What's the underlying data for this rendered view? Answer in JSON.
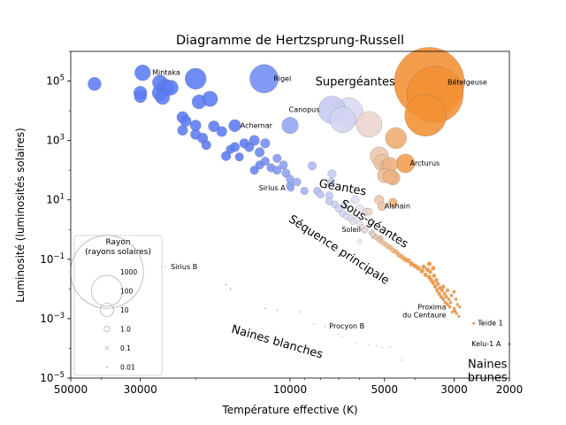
{
  "chart_data": {
    "type": "scatter",
    "title": "Diagramme de Hertzsprung-Russell",
    "xlabel": "Température effective (K)",
    "ylabel": "Luminosité (luminosités solaires)",
    "x_scale": "log",
    "x_reversed": true,
    "y_scale": "log",
    "xlim": [
      50000,
      2000
    ],
    "ylim": [
      1e-05,
      1000000
    ],
    "x_ticks": [
      {
        "value": 50000,
        "label": "50000"
      },
      {
        "value": 30000,
        "label": "30000"
      },
      {
        "value": 10000,
        "label": "10000"
      },
      {
        "value": 5000,
        "label": "5000"
      },
      {
        "value": 3000,
        "label": "3000"
      },
      {
        "value": 2000,
        "label": "2000"
      }
    ],
    "y_ticks": [
      {
        "value": 1e-05,
        "base": "10",
        "exp": "−5"
      },
      {
        "value": 0.001,
        "base": "10",
        "exp": "−3"
      },
      {
        "value": 0.1,
        "base": "10",
        "exp": "−1"
      },
      {
        "value": 10,
        "base": "10",
        "exp": "1"
      },
      {
        "value": 1000,
        "base": "10",
        "exp": "3"
      },
      {
        "value": 100000,
        "base": "10",
        "exp": "5"
      }
    ],
    "grid": false,
    "color_scale": {
      "hot": "#5b7cf5",
      "neutral": "#e8e4f0",
      "cool": "#f39033"
    },
    "regions": [
      {
        "label": "Supergéantes",
        "x": 6200,
        "y": 90000,
        "rotate": 0
      },
      {
        "label": "Géantes",
        "x": 6800,
        "y": 25,
        "rotate": 10
      },
      {
        "label": "Sous-géantes",
        "x": 5400,
        "y": 1.5,
        "rotate": 33
      },
      {
        "label": "Séquence principale",
        "x": 7000,
        "y": 0.2,
        "rotate": 33
      },
      {
        "label": "Naines blanches",
        "x": 11000,
        "y": 0.00016,
        "rotate": 16
      },
      {
        "label": "Naines",
        "x": 2350,
        "y": 2.8e-05,
        "rotate": 0
      },
      {
        "label": "brunes",
        "x": 2350,
        "y": 1e-05,
        "rotate": 0
      }
    ],
    "named_stars": [
      {
        "name": "Mintaka",
        "temp": 29500,
        "lum": 190000,
        "radius": 16
      },
      {
        "name": "Rigel",
        "temp": 12100,
        "lum": 120000,
        "radius": 79
      },
      {
        "name": "Bételgeuse",
        "temp": 3600,
        "lum": 90000,
        "radius": 900
      },
      {
        "name": "Canopus",
        "temp": 7350,
        "lum": 10700,
        "radius": 71
      },
      {
        "name": "Achernar",
        "temp": 15000,
        "lum": 3150,
        "radius": 8
      },
      {
        "name": "Arcturus",
        "temp": 4290,
        "lum": 170,
        "radius": 25
      },
      {
        "name": "Sirius A",
        "temp": 9940,
        "lum": 25,
        "radius": 1.7
      },
      {
        "name": "Alshain",
        "temp": 5100,
        "lum": 6,
        "radius": 3
      },
      {
        "name": "Soleil",
        "temp": 5772,
        "lum": 1,
        "radius": 1
      },
      {
        "name": "Sirius B",
        "temp": 25000,
        "lum": 0.056,
        "radius": 0.008
      },
      {
        "name": "Proxima du Centaure",
        "temp": 3040,
        "lum": 0.0017,
        "radius": 0.15
      },
      {
        "name": "Teide 1",
        "temp": 2600,
        "lum": 0.0007,
        "radius": 0.1
      },
      {
        "name": "Procyon B",
        "temp": 7740,
        "lum": 0.00055,
        "radius": 0.012
      },
      {
        "name": "Kelu-1 A",
        "temp": 2000,
        "lum": 0.00014,
        "radius": 0.1
      }
    ],
    "labels": [
      {
        "text": "Mintaka",
        "x": 27500,
        "y": 190000,
        "anchor": "start"
      },
      {
        "text": "Rigel",
        "x": 11300,
        "y": 120000,
        "anchor": "start"
      },
      {
        "text": "Bételgeuse",
        "x": 3150,
        "y": 90000,
        "anchor": "start"
      },
      {
        "text": "Canopus",
        "x": 8050,
        "y": 10700,
        "anchor": "end"
      },
      {
        "text": "Achernar",
        "x": 14400,
        "y": 3150,
        "anchor": "start"
      },
      {
        "text": "Arcturus",
        "x": 4150,
        "y": 170,
        "anchor": "start"
      },
      {
        "text": "Sirius A",
        "x": 10350,
        "y": 25,
        "anchor": "end"
      },
      {
        "text": "Alshain",
        "x": 5000,
        "y": 6,
        "anchor": "start"
      },
      {
        "text": "Soleil",
        "x": 5950,
        "y": 1,
        "anchor": "end"
      },
      {
        "text": "Sirius B",
        "x": 24000,
        "y": 0.056,
        "anchor": "start"
      },
      {
        "text": "Proxima",
        "x": 3180,
        "y": 0.0024,
        "anchor": "end"
      },
      {
        "text": "du Centaure",
        "x": 3180,
        "y": 0.0013,
        "anchor": "end"
      },
      {
        "text": "Teide 1",
        "x": 2520,
        "y": 0.0007,
        "anchor": "start"
      },
      {
        "text": "Procyon B",
        "x": 7500,
        "y": 0.00055,
        "anchor": "start"
      },
      {
        "text": "Kelu-1 A",
        "x": 2130,
        "y": 0.00014,
        "anchor": "end"
      }
    ],
    "stars": [
      {
        "temp": 42000,
        "lum": 80000,
        "radius": 10
      },
      {
        "temp": 30000,
        "lum": 40000,
        "radius": 10
      },
      {
        "temp": 30000,
        "lum": 30000,
        "radius": 8
      },
      {
        "temp": 26000,
        "lum": 90000,
        "radius": 14
      },
      {
        "temp": 26000,
        "lum": 40000,
        "radius": 15
      },
      {
        "temp": 25500,
        "lum": 28000,
        "radius": 12
      },
      {
        "temp": 25000,
        "lum": 60000,
        "radius": 20
      },
      {
        "temp": 24000,
        "lum": 60000,
        "radius": 14
      },
      {
        "temp": 20000,
        "lum": 120000,
        "radius": 35
      },
      {
        "temp": 19500,
        "lum": 20000,
        "radius": 12
      },
      {
        "temp": 18000,
        "lum": 25000,
        "radius": 15
      },
      {
        "temp": 10000,
        "lum": 3200,
        "radius": 18
      },
      {
        "temp": 22000,
        "lum": 6000,
        "radius": 7
      },
      {
        "temp": 21500,
        "lum": 4500,
        "radius": 6
      },
      {
        "temp": 22000,
        "lum": 2200,
        "radius": 5
      },
      {
        "temp": 20000,
        "lum": 1600,
        "radius": 5
      },
      {
        "temp": 19000,
        "lum": 1200,
        "radius": 5
      },
      {
        "temp": 18500,
        "lum": 700,
        "radius": 4
      },
      {
        "temp": 20000,
        "lum": 3200,
        "radius": 6
      },
      {
        "temp": 17500,
        "lum": 3000,
        "radius": 6
      },
      {
        "temp": 16500,
        "lum": 2000,
        "radius": 5
      },
      {
        "temp": 16000,
        "lum": 300,
        "radius": 4
      },
      {
        "temp": 15000,
        "lum": 600,
        "radius": 4
      },
      {
        "temp": 14000,
        "lum": 800,
        "radius": 4
      },
      {
        "temp": 13500,
        "lum": 600,
        "radius": 4
      },
      {
        "temp": 13000,
        "lum": 1000,
        "radius": 5
      },
      {
        "temp": 12500,
        "lum": 400,
        "radius": 4
      },
      {
        "temp": 12000,
        "lum": 800,
        "radius": 4
      },
      {
        "temp": 12500,
        "lum": 150,
        "radius": 3
      },
      {
        "temp": 12000,
        "lum": 200,
        "radius": 3
      },
      {
        "temp": 11500,
        "lum": 120,
        "radius": 3
      },
      {
        "temp": 11000,
        "lum": 250,
        "radius": 3
      },
      {
        "temp": 11000,
        "lum": 100,
        "radius": 3
      },
      {
        "temp": 10500,
        "lum": 150,
        "radius": 3
      },
      {
        "temp": 10300,
        "lum": 80,
        "radius": 3
      },
      {
        "temp": 13000,
        "lum": 100,
        "radius": 3
      },
      {
        "temp": 14500,
        "lum": 280,
        "radius": 3
      },
      {
        "temp": 15500,
        "lum": 500,
        "radius": 3
      },
      {
        "temp": 10000,
        "lum": 30,
        "radius": 2.5
      },
      {
        "temp": 10000,
        "lum": 50,
        "radius": 2.5
      },
      {
        "temp": 9500,
        "lum": 40,
        "radius": 2.5
      },
      {
        "temp": 9000,
        "lum": 20,
        "radius": 2.3
      },
      {
        "temp": 8500,
        "lum": 140,
        "radius": 3
      },
      {
        "temp": 8200,
        "lum": 20,
        "radius": 2.2
      },
      {
        "temp": 8000,
        "lum": 15,
        "radius": 2.0
      },
      {
        "temp": 7500,
        "lum": 14,
        "radius": 2.2
      },
      {
        "temp": 7400,
        "lum": 40,
        "radius": 2.2
      },
      {
        "temp": 7350,
        "lum": 75,
        "radius": 3
      },
      {
        "temp": 7500,
        "lum": 9,
        "radius": 2.0
      },
      {
        "temp": 7200,
        "lum": 7,
        "radius": 1.9
      },
      {
        "temp": 7000,
        "lum": 5,
        "radius": 1.8
      },
      {
        "temp": 6800,
        "lum": 3.5,
        "radius": 1.7
      },
      {
        "temp": 6600,
        "lum": 2.8,
        "radius": 1.6
      },
      {
        "temp": 6400,
        "lum": 2.4,
        "radius": 1.5
      },
      {
        "temp": 6700,
        "lum": 6.5,
        "radius": 2.0
      },
      {
        "temp": 6200,
        "lum": 10,
        "radius": 2.4
      },
      {
        "temp": 6300,
        "lum": 1.9,
        "radius": 1.4
      },
      {
        "temp": 6100,
        "lum": 2.1,
        "radius": 1.3
      },
      {
        "temp": 6000,
        "lum": 1.6,
        "radius": 1.2
      },
      {
        "temp": 5900,
        "lum": 1.2,
        "radius": 1.1
      },
      {
        "temp": 5800,
        "lum": 0.95,
        "radius": 1.0
      },
      {
        "temp": 5700,
        "lum": 4,
        "radius": 2.0
      },
      {
        "temp": 5600,
        "lum": 4,
        "radius": 1.8
      },
      {
        "temp": 5500,
        "lum": 0.8,
        "radius": 0.95
      },
      {
        "temp": 5400,
        "lum": 0.6,
        "radius": 0.9
      },
      {
        "temp": 5300,
        "lum": 0.55,
        "radius": 0.9
      },
      {
        "temp": 5200,
        "lum": 0.45,
        "radius": 0.85
      },
      {
        "temp": 5100,
        "lum": 0.38,
        "radius": 0.8
      },
      {
        "temp": 5000,
        "lum": 0.34,
        "radius": 0.8
      },
      {
        "temp": 4900,
        "lum": 0.28,
        "radius": 0.78
      },
      {
        "temp": 4800,
        "lum": 0.25,
        "radius": 0.75
      },
      {
        "temp": 4700,
        "lum": 0.2,
        "radius": 0.7
      },
      {
        "temp": 4600,
        "lum": 0.18,
        "radius": 0.7
      },
      {
        "temp": 4500,
        "lum": 0.14,
        "radius": 0.68
      },
      {
        "temp": 5150,
        "lum": 0.5,
        "radius": 0.9
      },
      {
        "temp": 5450,
        "lum": 0.7,
        "radius": 0.9
      },
      {
        "temp": 6000,
        "lum": 0.4,
        "radius": 0.8
      },
      {
        "temp": 5200,
        "lum": 300,
        "radius": 24
      },
      {
        "temp": 5100,
        "lum": 180,
        "radius": 18
      },
      {
        "temp": 4900,
        "lum": 120,
        "radius": 16
      },
      {
        "temp": 4800,
        "lum": 150,
        "radius": 14
      },
      {
        "temp": 4700,
        "lum": 55,
        "radius": 12
      },
      {
        "temp": 4800,
        "lum": 60,
        "radius": 11
      },
      {
        "temp": 5000,
        "lum": 65,
        "radius": 12
      },
      {
        "temp": 4600,
        "lum": 1200,
        "radius": 35
      },
      {
        "temp": 5600,
        "lum": 3500,
        "radius": 60
      },
      {
        "temp": 6500,
        "lum": 9000,
        "radius": 80
      },
      {
        "temp": 6800,
        "lum": 5000,
        "radius": 60
      },
      {
        "temp": 3450,
        "lum": 35000,
        "radius": 500
      },
      {
        "temp": 3700,
        "lum": 7000,
        "radius": 220
      },
      {
        "temp": 5200,
        "lum": 10,
        "radius": 4
      },
      {
        "temp": 4700,
        "lum": 8,
        "radius": 3.5
      },
      {
        "temp": 6000,
        "lum": 5,
        "radius": 3
      },
      {
        "temp": 4400,
        "lum": 0.12,
        "radius": 0.65
      },
      {
        "temp": 4300,
        "lum": 0.1,
        "radius": 0.62
      },
      {
        "temp": 4200,
        "lum": 0.09,
        "radius": 0.6
      },
      {
        "temp": 4100,
        "lum": 0.07,
        "radius": 0.58
      },
      {
        "temp": 4000,
        "lum": 0.06,
        "radius": 0.55
      },
      {
        "temp": 3900,
        "lum": 0.05,
        "radius": 0.52
      },
      {
        "temp": 3800,
        "lum": 0.04,
        "radius": 0.5
      },
      {
        "temp": 3750,
        "lum": 0.055,
        "radius": 0.5
      },
      {
        "temp": 3700,
        "lum": 0.03,
        "radius": 0.45
      },
      {
        "temp": 3650,
        "lum": 0.045,
        "radius": 0.45
      },
      {
        "temp": 3600,
        "lum": 0.025,
        "radius": 0.42
      },
      {
        "temp": 3580,
        "lum": 0.038,
        "radius": 0.42
      },
      {
        "temp": 3550,
        "lum": 0.02,
        "radius": 0.4
      },
      {
        "temp": 3500,
        "lum": 0.016,
        "radius": 0.38
      },
      {
        "temp": 3480,
        "lum": 0.028,
        "radius": 0.38
      },
      {
        "temp": 3450,
        "lum": 0.012,
        "radius": 0.35
      },
      {
        "temp": 3420,
        "lum": 0.02,
        "radius": 0.35
      },
      {
        "temp": 3400,
        "lum": 0.009,
        "radius": 0.32
      },
      {
        "temp": 3380,
        "lum": 0.015,
        "radius": 0.32
      },
      {
        "temp": 3350,
        "lum": 0.007,
        "radius": 0.3
      },
      {
        "temp": 3330,
        "lum": 0.011,
        "radius": 0.3
      },
      {
        "temp": 3300,
        "lum": 0.0055,
        "radius": 0.28
      },
      {
        "temp": 3280,
        "lum": 0.009,
        "radius": 0.28
      },
      {
        "temp": 3250,
        "lum": 0.0045,
        "radius": 0.26
      },
      {
        "temp": 3220,
        "lum": 0.007,
        "radius": 0.25
      },
      {
        "temp": 3200,
        "lum": 0.0035,
        "radius": 0.24
      },
      {
        "temp": 3180,
        "lum": 0.0055,
        "radius": 0.23
      },
      {
        "temp": 3150,
        "lum": 0.003,
        "radius": 0.22
      },
      {
        "temp": 3120,
        "lum": 0.0045,
        "radius": 0.21
      },
      {
        "temp": 3100,
        "lum": 0.0025,
        "radius": 0.2
      },
      {
        "temp": 3080,
        "lum": 0.0035,
        "radius": 0.19
      },
      {
        "temp": 3060,
        "lum": 0.006,
        "radius": 0.2
      },
      {
        "temp": 3000,
        "lum": 0.0022,
        "radius": 0.17
      },
      {
        "temp": 2980,
        "lum": 0.0018,
        "radius": 0.16
      },
      {
        "temp": 2950,
        "lum": 0.0015,
        "radius": 0.15
      },
      {
        "temp": 2930,
        "lum": 0.003,
        "radius": 0.16
      },
      {
        "temp": 2900,
        "lum": 0.0012,
        "radius": 0.13
      },
      {
        "temp": 2880,
        "lum": 0.0025,
        "radius": 0.14
      },
      {
        "temp": 3000,
        "lum": 0.008,
        "radius": 0.22
      },
      {
        "temp": 2960,
        "lum": 0.0045,
        "radius": 0.18
      },
      {
        "temp": 3500,
        "lum": 0.05,
        "radius": 0.45
      },
      {
        "temp": 3600,
        "lum": 0.07,
        "radius": 0.5
      },
      {
        "temp": 3250,
        "lum": 0.012,
        "radius": 0.3
      },
      {
        "temp": 3150,
        "lum": 0.009,
        "radius": 0.26
      },
      {
        "temp": 16000,
        "lum": 0.014,
        "radius": 0.012
      },
      {
        "temp": 15500,
        "lum": 0.01,
        "radius": 0.012
      },
      {
        "temp": 12000,
        "lum": 0.0022,
        "radius": 0.011
      },
      {
        "temp": 11000,
        "lum": 0.002,
        "radius": 0.011
      },
      {
        "temp": 9300,
        "lum": 0.0017,
        "radius": 0.012
      },
      {
        "temp": 8400,
        "lum": 0.00065,
        "radius": 0.012
      },
      {
        "temp": 7000,
        "lum": 0.0003,
        "radius": 0.012
      },
      {
        "temp": 6800,
        "lum": 0.00025,
        "radius": 0.012
      },
      {
        "temp": 6200,
        "lum": 0.00015,
        "radius": 0.012
      },
      {
        "temp": 5600,
        "lum": 0.00013,
        "radius": 0.012
      },
      {
        "temp": 5300,
        "lum": 0.00012,
        "radius": 0.012
      },
      {
        "temp": 5100,
        "lum": 0.00011,
        "radius": 0.012
      },
      {
        "temp": 4800,
        "lum": 0.00011,
        "radius": 0.012
      },
      {
        "temp": 4400,
        "lum": 4e-05,
        "radius": 0.012
      }
    ],
    "legend": {
      "title_line1": "Rayon",
      "title_line2": "(rayons solaires)",
      "position": "lower-left",
      "entries": [
        {
          "label": "1000",
          "radius": 1000
        },
        {
          "label": "100",
          "radius": 100
        },
        {
          "label": "10",
          "radius": 10
        },
        {
          "label": "1.0",
          "radius": 1
        },
        {
          "label": "0.1",
          "radius": 0.1
        },
        {
          "label": "0.01",
          "radius": 0.01
        }
      ]
    }
  }
}
